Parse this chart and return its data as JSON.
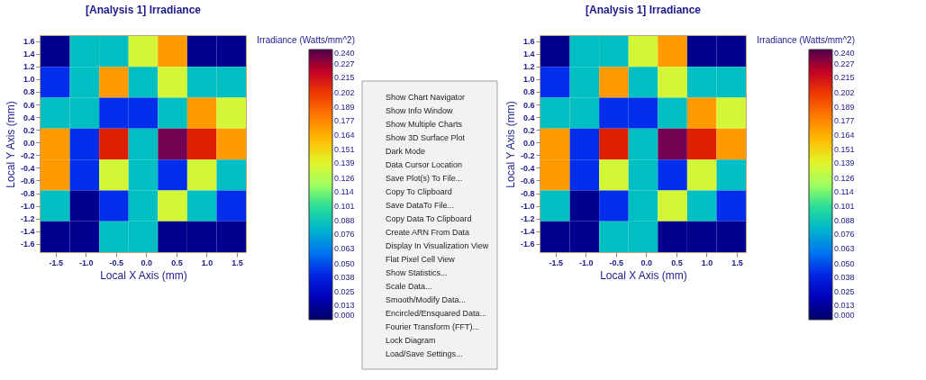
{
  "chart_data": [
    {
      "type": "heatmap",
      "title": "[Analysis 1] Irradiance",
      "xlabel": "Local X Axis (mm)",
      "ylabel": "Local Y Axis (mm)",
      "clabel": "Irradiance (Watts/mm^2)",
      "grid": false,
      "xlim": [
        -1.75,
        1.65
      ],
      "ylim": [
        -1.73,
        1.68
      ],
      "xticks": [
        -1.5,
        {
          "value": -1.0,
          "label": "-1.0"
        },
        -0.5,
        {
          "value": 0,
          "label": "0.0"
        },
        0.5,
        {
          "value": 1.0,
          "label": "1.0"
        },
        1.5
      ],
      "yticks": [
        -1.6,
        -1.4,
        -1.2,
        {
          "value": -1.0,
          "label": "-1.0"
        },
        -0.8,
        -0.6,
        -0.4,
        -0.2,
        {
          "value": 0,
          "label": "0.0"
        },
        0.2,
        0.4,
        0.6,
        0.8,
        {
          "value": 1.0,
          "label": "1.0"
        },
        1.2,
        1.4,
        1.6
      ],
      "clim": [
        0,
        0.24
      ],
      "cticks": [
        {
          "value": 0,
          "label": "0.000"
        },
        0.013,
        0.025,
        0.038,
        {
          "value": 0.05,
          "label": "0.050"
        },
        0.063,
        0.076,
        0.088,
        0.101,
        0.114,
        0.126,
        0.139,
        0.151,
        0.164,
        0.177,
        0.189,
        0.202,
        0.215,
        0.227,
        {
          "value": 0.24,
          "label": "0.240"
        }
      ],
      "cells": [
        [
          0.01,
          0.085,
          0.085,
          0.135,
          0.17,
          0.01,
          0.01
        ],
        [
          0.045,
          0.085,
          0.17,
          0.085,
          0.135,
          0.085,
          0.085
        ],
        [
          0.085,
          0.085,
          0.045,
          0.045,
          0.085,
          0.17,
          0.135
        ],
        [
          0.17,
          0.045,
          0.21,
          0.085,
          0.235,
          0.21,
          0.17
        ],
        [
          0.17,
          0.045,
          0.135,
          0.085,
          0.045,
          0.135,
          0.085
        ],
        [
          0.085,
          0.01,
          0.045,
          0.085,
          0.135,
          0.085,
          0.045
        ],
        [
          0.01,
          0.01,
          0.085,
          0.085,
          0.01,
          0.01,
          0.01
        ]
      ]
    },
    {
      "type": "other",
      "annotations": [
        "Show Chart Navigator",
        "Show Info Window",
        "Show Multiple Charts",
        "Show 3D Surface Plot",
        "Dark Mode",
        "Data Cursor Location",
        "Save Plot(s) To File...",
        "Copy To Clipboard",
        "Save DataTo File...",
        "Copy Data To Clipboard",
        "Create ARN From Data",
        "Display In Visualization View",
        "Flat Pixel Cell View",
        "Show Statistics...",
        "Scale Data...",
        "Smooth/Modify Data...",
        "Encircled/Ensquared Data...",
        "Fourier Transform (FFT)...",
        "Lock Diagram",
        "Load/Save Settings..."
      ]
    },
    {
      "type": "heatmap",
      "title": "[Analysis 1] Irradiance",
      "xlabel": "Local X Axis (mm)",
      "ylabel": "Local Y Axis (mm)",
      "clabel": "Irradiance (Watts/mm^2)",
      "grid": false,
      "xlim": [
        -1.75,
        1.65
      ],
      "ylim": [
        -1.73,
        1.68
      ],
      "xticks": [
        -1.5,
        {
          "value": -1.0,
          "label": "-1.0"
        },
        -0.5,
        {
          "value": 0,
          "label": "0.0"
        },
        0.5,
        {
          "value": 1.0,
          "label": "1.0"
        },
        1.5
      ],
      "yticks": [
        -1.6,
        -1.4,
        -1.2,
        {
          "value": -1.0,
          "label": "-1.0"
        },
        -0.8,
        -0.6,
        -0.4,
        -0.2,
        {
          "value": 0,
          "label": "0.0"
        },
        0.2,
        0.4,
        0.6,
        0.8,
        {
          "value": 1.0,
          "label": "1.0"
        },
        1.2,
        1.4,
        1.6
      ],
      "clim": [
        0,
        0.24
      ],
      "cticks": [
        {
          "value": 0,
          "label": "0.000"
        },
        0.013,
        0.025,
        0.038,
        {
          "value": 0.05,
          "label": "0.050"
        },
        0.063,
        0.076,
        0.088,
        0.101,
        0.114,
        0.126,
        0.139,
        0.151,
        0.164,
        0.177,
        0.189,
        0.202,
        0.215,
        0.227,
        {
          "value": 0.24,
          "label": "0.240"
        }
      ],
      "cells": [
        [
          0.01,
          0.085,
          0.085,
          0.135,
          0.17,
          0.01,
          0.01
        ],
        [
          0.045,
          0.085,
          0.17,
          0.085,
          0.135,
          0.085,
          0.085
        ],
        [
          0.085,
          0.085,
          0.045,
          0.045,
          0.085,
          0.17,
          0.135
        ],
        [
          0.17,
          0.045,
          0.21,
          0.085,
          0.235,
          0.21,
          0.17
        ],
        [
          0.17,
          0.045,
          0.135,
          0.085,
          0.045,
          0.135,
          0.085
        ],
        [
          0.085,
          0.01,
          0.045,
          0.085,
          0.135,
          0.085,
          0.045
        ],
        [
          0.01,
          0.01,
          0.085,
          0.085,
          0.01,
          0.01,
          0.01
        ]
      ]
    }
  ]
}
